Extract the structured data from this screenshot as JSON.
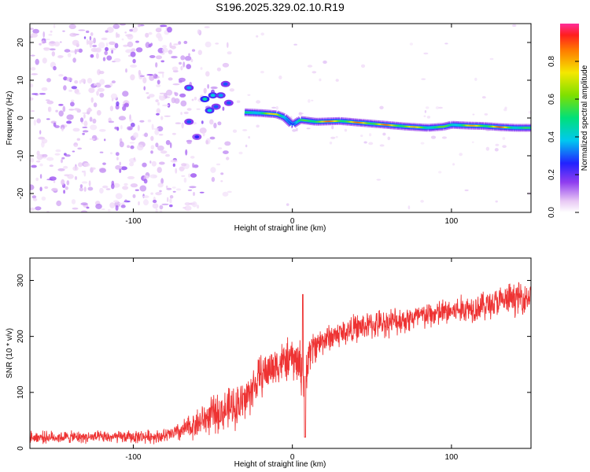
{
  "figure": {
    "title": "S196.2025.329.02.10.R19"
  },
  "chart_data": [
    {
      "type": "heatmap",
      "xlabel": "Height of straight line (km)",
      "ylabel": "Frequency (Hz)",
      "xlim": [
        -165,
        150
      ],
      "ylim": [
        -25,
        25
      ],
      "xticks": [
        -100,
        0,
        100
      ],
      "yticks": [
        -20,
        -10,
        0,
        10,
        20
      ],
      "colorbar": {
        "label": "Normalized spectral amplitude",
        "range": [
          0,
          1
        ],
        "ticks": [
          "0.0",
          "0.2",
          "0.4",
          "0.6",
          "0.8"
        ],
        "tick_values": [
          0,
          0.2,
          0.4,
          0.6,
          0.8
        ]
      },
      "ridge": {
        "x": [
          -30,
          -20,
          -10,
          -5,
          0,
          5,
          15,
          30,
          50,
          70,
          85,
          95,
          100,
          110,
          120,
          130,
          140,
          150
        ],
        "freq": [
          1.5,
          1.3,
          1.0,
          0.2,
          -1.8,
          -0.5,
          -1.0,
          -0.8,
          -1.5,
          -2.2,
          -2.6,
          -2.3,
          -1.8,
          -2.0,
          -2.1,
          -2.4,
          -2.6,
          -2.6
        ],
        "amplitude": [
          0.5,
          0.7,
          0.8,
          0.6,
          0.3,
          0.55,
          0.9,
          0.85,
          0.9,
          0.85,
          0.7,
          0.6,
          0.6,
          0.8,
          0.85,
          0.9,
          0.7,
          0.5
        ]
      },
      "hotspots": {
        "x": [
          -65,
          -55,
          -50,
          -48,
          -45,
          -42,
          -40,
          -60,
          -65,
          -52
        ],
        "freq": [
          8,
          5,
          6,
          3,
          6,
          9,
          4,
          -5,
          -1,
          2
        ],
        "amplitude": [
          0.35,
          0.45,
          0.4,
          0.3,
          0.35,
          0.3,
          0.3,
          0.25,
          0.3,
          0.4
        ]
      }
    },
    {
      "type": "line",
      "xlabel": "Height of straight line (km)",
      "ylabel": "SNR (10 * v/v)",
      "xlim": [
        -165,
        150
      ],
      "ylim": [
        0,
        340
      ],
      "xticks": [
        -100,
        0,
        100
      ],
      "yticks": [
        0,
        100,
        200,
        300
      ],
      "series": [
        {
          "name": "SNR",
          "color": "#ee3333",
          "x": [
            -165,
            -140,
            -110,
            -80,
            -70,
            -60,
            -50,
            -40,
            -30,
            -20,
            -10,
            0,
            5,
            8,
            10,
            15,
            20,
            25,
            30,
            40,
            60,
            80,
            100,
            120,
            140,
            150
          ],
          "mean": [
            20,
            20,
            20,
            22,
            30,
            45,
            60,
            70,
            85,
            130,
            150,
            160,
            150,
            110,
            170,
            185,
            195,
            200,
            205,
            215,
            225,
            235,
            245,
            255,
            268,
            272
          ],
          "noise": [
            13,
            13,
            13,
            15,
            22,
            32,
            40,
            45,
            50,
            45,
            45,
            45,
            55,
            55,
            45,
            35,
            30,
            30,
            30,
            30,
            30,
            30,
            30,
            32,
            35,
            35
          ]
        }
      ]
    }
  ]
}
